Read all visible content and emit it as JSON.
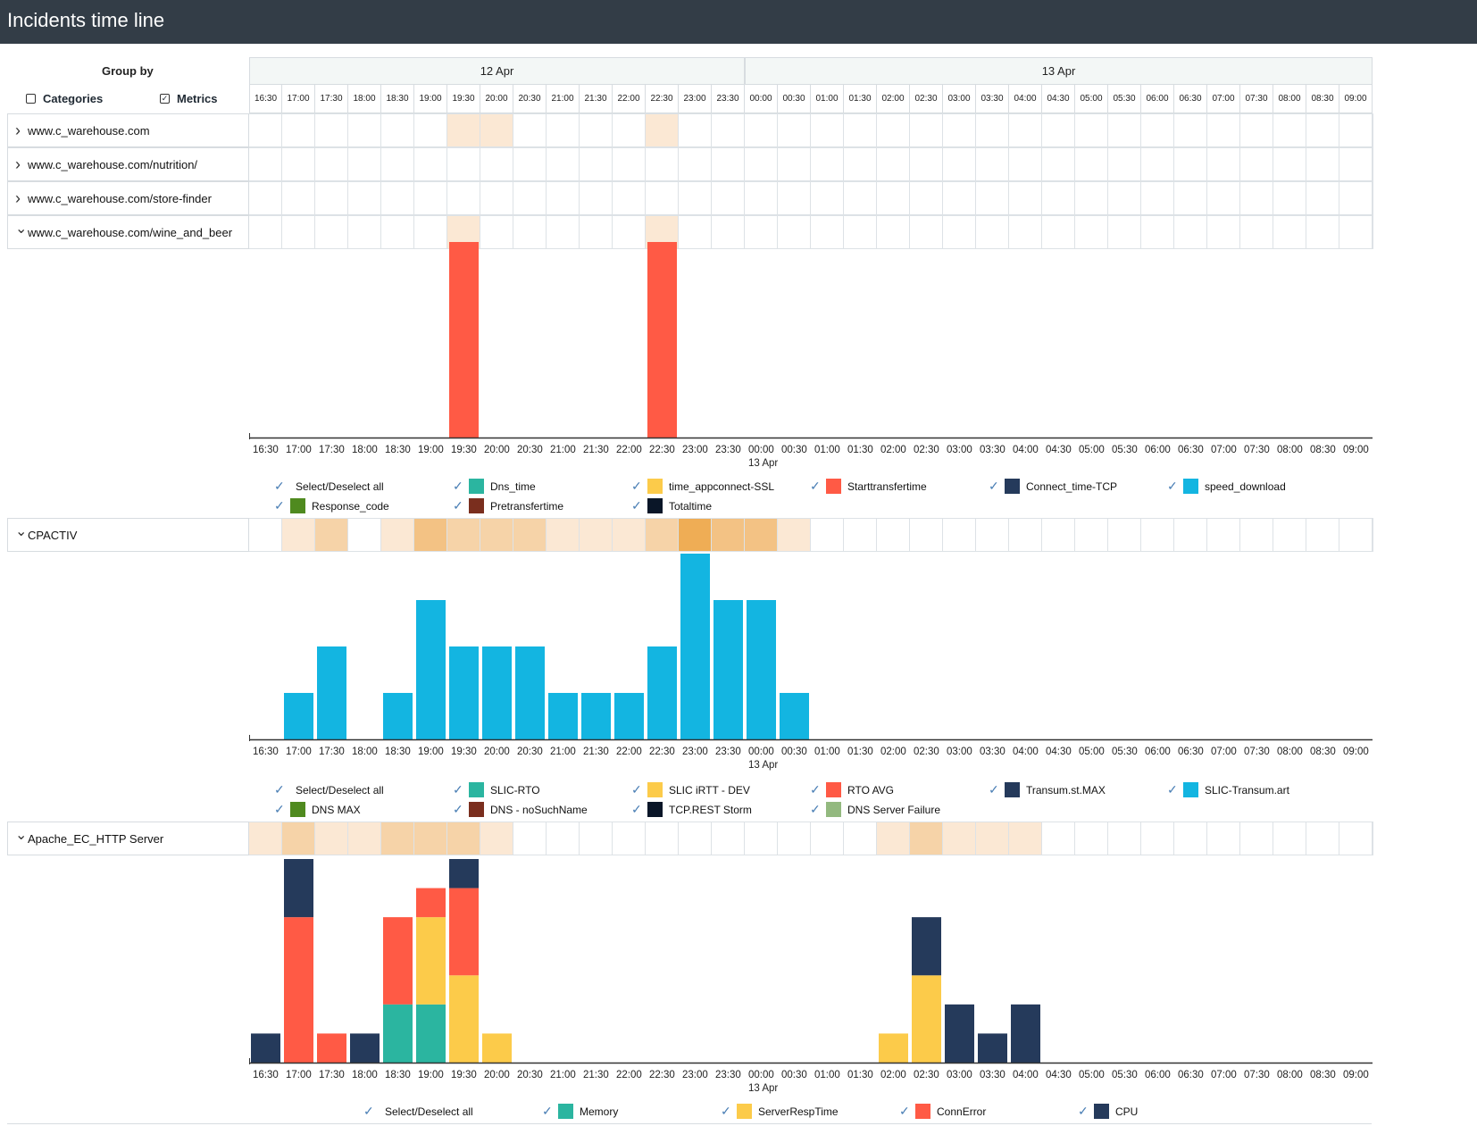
{
  "app": {
    "title": "Incidents time line"
  },
  "group_by": {
    "label": "Group by",
    "categories_label": "Categories",
    "categories_checked": false,
    "metrics_label": "Metrics",
    "metrics_checked": true
  },
  "days": [
    {
      "label": "12 Apr",
      "span": 15
    },
    {
      "label": "13 Apr",
      "span": 19
    }
  ],
  "times": [
    "16:30",
    "17:00",
    "17:30",
    "18:00",
    "18:30",
    "19:00",
    "19:30",
    "20:00",
    "20:30",
    "21:00",
    "21:30",
    "22:00",
    "22:30",
    "23:00",
    "23:30",
    "00:00",
    "00:30",
    "01:00",
    "01:30",
    "02:00",
    "02:30",
    "03:00",
    "03:30",
    "04:00",
    "04:30",
    "05:00",
    "05:30",
    "06:00",
    "06:30",
    "07:00",
    "07:30",
    "08:00",
    "08:30",
    "09:00"
  ],
  "axis_day_marker": {
    "index": 15,
    "label": "13 Apr"
  },
  "rows": [
    {
      "label": "www.c_warehouse.com",
      "expanded": false,
      "heat": [
        0,
        0,
        0,
        0,
        0,
        0,
        1,
        1,
        0,
        0,
        0,
        0,
        1,
        0,
        0,
        0,
        0,
        0,
        0,
        0,
        0,
        0,
        0,
        0,
        0,
        0,
        0,
        0,
        0,
        0,
        0,
        0,
        0,
        0
      ]
    },
    {
      "label": "www.c_warehouse.com/nutrition/",
      "expanded": false,
      "heat": [
        0,
        0,
        0,
        0,
        0,
        0,
        0,
        0,
        0,
        0,
        0,
        0,
        0,
        0,
        0,
        0,
        0,
        0,
        0,
        0,
        0,
        0,
        0,
        0,
        0,
        0,
        0,
        0,
        0,
        0,
        0,
        0,
        0,
        0
      ]
    },
    {
      "label": "www.c_warehouse.com/store-finder",
      "expanded": false,
      "heat": [
        0,
        0,
        0,
        0,
        0,
        0,
        0,
        0,
        0,
        0,
        0,
        0,
        0,
        0,
        0,
        0,
        0,
        0,
        0,
        0,
        0,
        0,
        0,
        0,
        0,
        0,
        0,
        0,
        0,
        0,
        0,
        0,
        0,
        0
      ]
    },
    {
      "label": "www.c_warehouse.com/wine_and_beer",
      "expanded": true,
      "heat": [
        0,
        0,
        0,
        0,
        0,
        0,
        1,
        0,
        0,
        0,
        0,
        0,
        1,
        0,
        0,
        0,
        0,
        0,
        0,
        0,
        0,
        0,
        0,
        0,
        0,
        0,
        0,
        0,
        0,
        0,
        0,
        0,
        0,
        0
      ]
    }
  ],
  "heat_colors": [
    "#ffffff",
    "#fbe8d4",
    "#f6d3a8",
    "#f3c284",
    "#efad55"
  ],
  "sections": [
    {
      "id": "wine",
      "chart": {
        "top": 271,
        "bottom": 490,
        "ymax": 1
      },
      "legend_rows": [
        [
          {
            "label": "Select/Deselect all",
            "color": null
          },
          {
            "label": "Dns_time",
            "color": "#2bb5a0"
          },
          {
            "label": "time_appconnect-SSL",
            "color": "#fccb4a"
          },
          {
            "label": "Starttransfertime",
            "color": "#ff5a45"
          },
          {
            "label": "Connect_time-TCP",
            "color": "#253a5b"
          },
          {
            "label": "speed_download",
            "color": "#13b5e1"
          }
        ],
        [
          {
            "label": "Response_code",
            "color": "#4f8a1f"
          },
          {
            "label": "Pretransfertime",
            "color": "#7a2e1e"
          },
          {
            "label": "Totaltime",
            "color": "#0a1628"
          }
        ]
      ]
    },
    {
      "id": "cpactiv",
      "label": "CPACTIV",
      "heat": [
        0,
        1,
        2,
        0,
        1,
        3,
        2,
        2,
        2,
        1,
        1,
        1,
        2,
        4,
        3,
        3,
        1,
        0,
        0,
        0,
        0,
        0,
        0,
        0,
        0,
        0,
        0,
        0,
        0,
        0,
        0,
        0,
        0,
        0
      ],
      "chart": {
        "top": 620,
        "bottom": 828,
        "ymax": 4
      },
      "legend_rows": [
        [
          {
            "label": "Select/Deselect all",
            "color": null
          },
          {
            "label": "SLIC-RTO",
            "color": "#2bb5a0"
          },
          {
            "label": "SLIC iRTT - DEV",
            "color": "#fccb4a"
          },
          {
            "label": "RTO AVG",
            "color": "#ff5a45"
          },
          {
            "label": "Transum.st.MAX",
            "color": "#253a5b"
          },
          {
            "label": "SLIC-Transum.art",
            "color": "#13b5e1"
          }
        ],
        [
          {
            "label": "DNS MAX",
            "color": "#4f8a1f"
          },
          {
            "label": "DNS - noSuchName",
            "color": "#7a2e1e"
          },
          {
            "label": "TCP.REST Storm",
            "color": "#0a1628"
          },
          {
            "label": "DNS Server Failure",
            "color": "#93b97f"
          }
        ]
      ]
    },
    {
      "id": "apache",
      "label": "Apache_EC_HTTP Server",
      "heat": [
        1,
        2,
        1,
        1,
        2,
        2,
        2,
        1,
        0,
        0,
        0,
        0,
        0,
        0,
        0,
        0,
        0,
        0,
        0,
        1,
        2,
        1,
        1,
        1,
        0,
        0,
        0,
        0,
        0,
        0,
        0,
        0,
        0,
        0
      ],
      "chart": {
        "top": 962,
        "bottom": 1190,
        "ymax": 7
      },
      "legend_rows": [
        [
          {
            "label": "Select/Deselect all",
            "color": null
          },
          {
            "label": "Memory",
            "color": "#2bb5a0"
          },
          {
            "label": "ServerRespTime",
            "color": "#fccb4a"
          },
          {
            "label": "ConnError",
            "color": "#ff5a45"
          },
          {
            "label": "CPU",
            "color": "#253a5b"
          }
        ]
      ]
    }
  ],
  "chart_data": [
    {
      "type": "bar",
      "title": "",
      "categories": [
        "16:30",
        "17:00",
        "17:30",
        "18:00",
        "18:30",
        "19:00",
        "19:30",
        "20:00",
        "20:30",
        "21:00",
        "21:30",
        "22:00",
        "22:30",
        "23:00",
        "23:30",
        "00:00",
        "00:30",
        "01:00",
        "01:30",
        "02:00",
        "02:30",
        "03:00",
        "03:30",
        "04:00",
        "04:30",
        "05:00",
        "05:30",
        "06:00",
        "06:30",
        "07:00",
        "07:30",
        "08:00",
        "08:30",
        "09:00"
      ],
      "series": [
        {
          "name": "Starttransfertime",
          "color": "#ff5a45",
          "values": [
            0,
            0,
            0,
            0,
            0,
            0,
            1,
            0,
            0,
            0,
            0,
            0,
            1,
            0,
            0,
            0,
            0,
            0,
            0,
            0,
            0,
            0,
            0,
            0,
            0,
            0,
            0,
            0,
            0,
            0,
            0,
            0,
            0,
            0
          ]
        }
      ],
      "ylim": [
        0,
        1
      ],
      "grid": false
    },
    {
      "type": "bar",
      "title": "",
      "categories": [
        "16:30",
        "17:00",
        "17:30",
        "18:00",
        "18:30",
        "19:00",
        "19:30",
        "20:00",
        "20:30",
        "21:00",
        "21:30",
        "22:00",
        "22:30",
        "23:00",
        "23:30",
        "00:00",
        "00:30",
        "01:00",
        "01:30",
        "02:00",
        "02:30",
        "03:00",
        "03:30",
        "04:00",
        "04:30",
        "05:00",
        "05:30",
        "06:00",
        "06:30",
        "07:00",
        "07:30",
        "08:00",
        "08:30",
        "09:00"
      ],
      "series": [
        {
          "name": "SLIC-Transum.art",
          "color": "#13b5e1",
          "values": [
            0,
            1,
            2,
            0,
            1,
            3,
            2,
            2,
            2,
            1,
            1,
            1,
            2,
            4,
            3,
            3,
            1,
            0,
            0,
            0,
            0,
            0,
            0,
            0,
            0,
            0,
            0,
            0,
            0,
            0,
            0,
            0,
            0,
            0
          ]
        }
      ],
      "ylim": [
        0,
        4
      ],
      "grid": false
    },
    {
      "type": "bar",
      "stacked": true,
      "title": "",
      "categories": [
        "16:30",
        "17:00",
        "17:30",
        "18:00",
        "18:30",
        "19:00",
        "19:30",
        "20:00",
        "20:30",
        "21:00",
        "21:30",
        "22:00",
        "22:30",
        "23:00",
        "23:30",
        "00:00",
        "00:30",
        "01:00",
        "01:30",
        "02:00",
        "02:30",
        "03:00",
        "03:30",
        "04:00",
        "04:30",
        "05:00",
        "05:30",
        "06:00",
        "06:30",
        "07:00",
        "07:30",
        "08:00",
        "08:30",
        "09:00"
      ],
      "series": [
        {
          "name": "Memory",
          "color": "#2bb5a0",
          "values": [
            0,
            0,
            0,
            0,
            2,
            2,
            0,
            0,
            0,
            0,
            0,
            0,
            0,
            0,
            0,
            0,
            0,
            0,
            0,
            0,
            0,
            0,
            0,
            0,
            0,
            0,
            0,
            0,
            0,
            0,
            0,
            0,
            0,
            0
          ]
        },
        {
          "name": "ServerRespTime",
          "color": "#fccb4a",
          "values": [
            0,
            0,
            0,
            0,
            0,
            3,
            3,
            1,
            0,
            0,
            0,
            0,
            0,
            0,
            0,
            0,
            0,
            0,
            0,
            1,
            3,
            0,
            0,
            0,
            0,
            0,
            0,
            0,
            0,
            0,
            0,
            0,
            0,
            0
          ]
        },
        {
          "name": "ConnError",
          "color": "#ff5a45",
          "values": [
            0,
            5,
            1,
            0,
            3,
            1,
            3,
            0,
            0,
            0,
            0,
            0,
            0,
            0,
            0,
            0,
            0,
            0,
            0,
            0,
            0,
            0,
            0,
            0,
            0,
            0,
            0,
            0,
            0,
            0,
            0,
            0,
            0,
            0
          ]
        },
        {
          "name": "CPU",
          "color": "#253a5b",
          "values": [
            1,
            2,
            0,
            1,
            0,
            0,
            1,
            0,
            0,
            0,
            0,
            0,
            0,
            0,
            0,
            0,
            0,
            0,
            0,
            0,
            2,
            2,
            1,
            2,
            0,
            0,
            0,
            0,
            0,
            0,
            0,
            0,
            0,
            0
          ]
        }
      ],
      "ylim": [
        0,
        7
      ],
      "grid": false
    }
  ]
}
